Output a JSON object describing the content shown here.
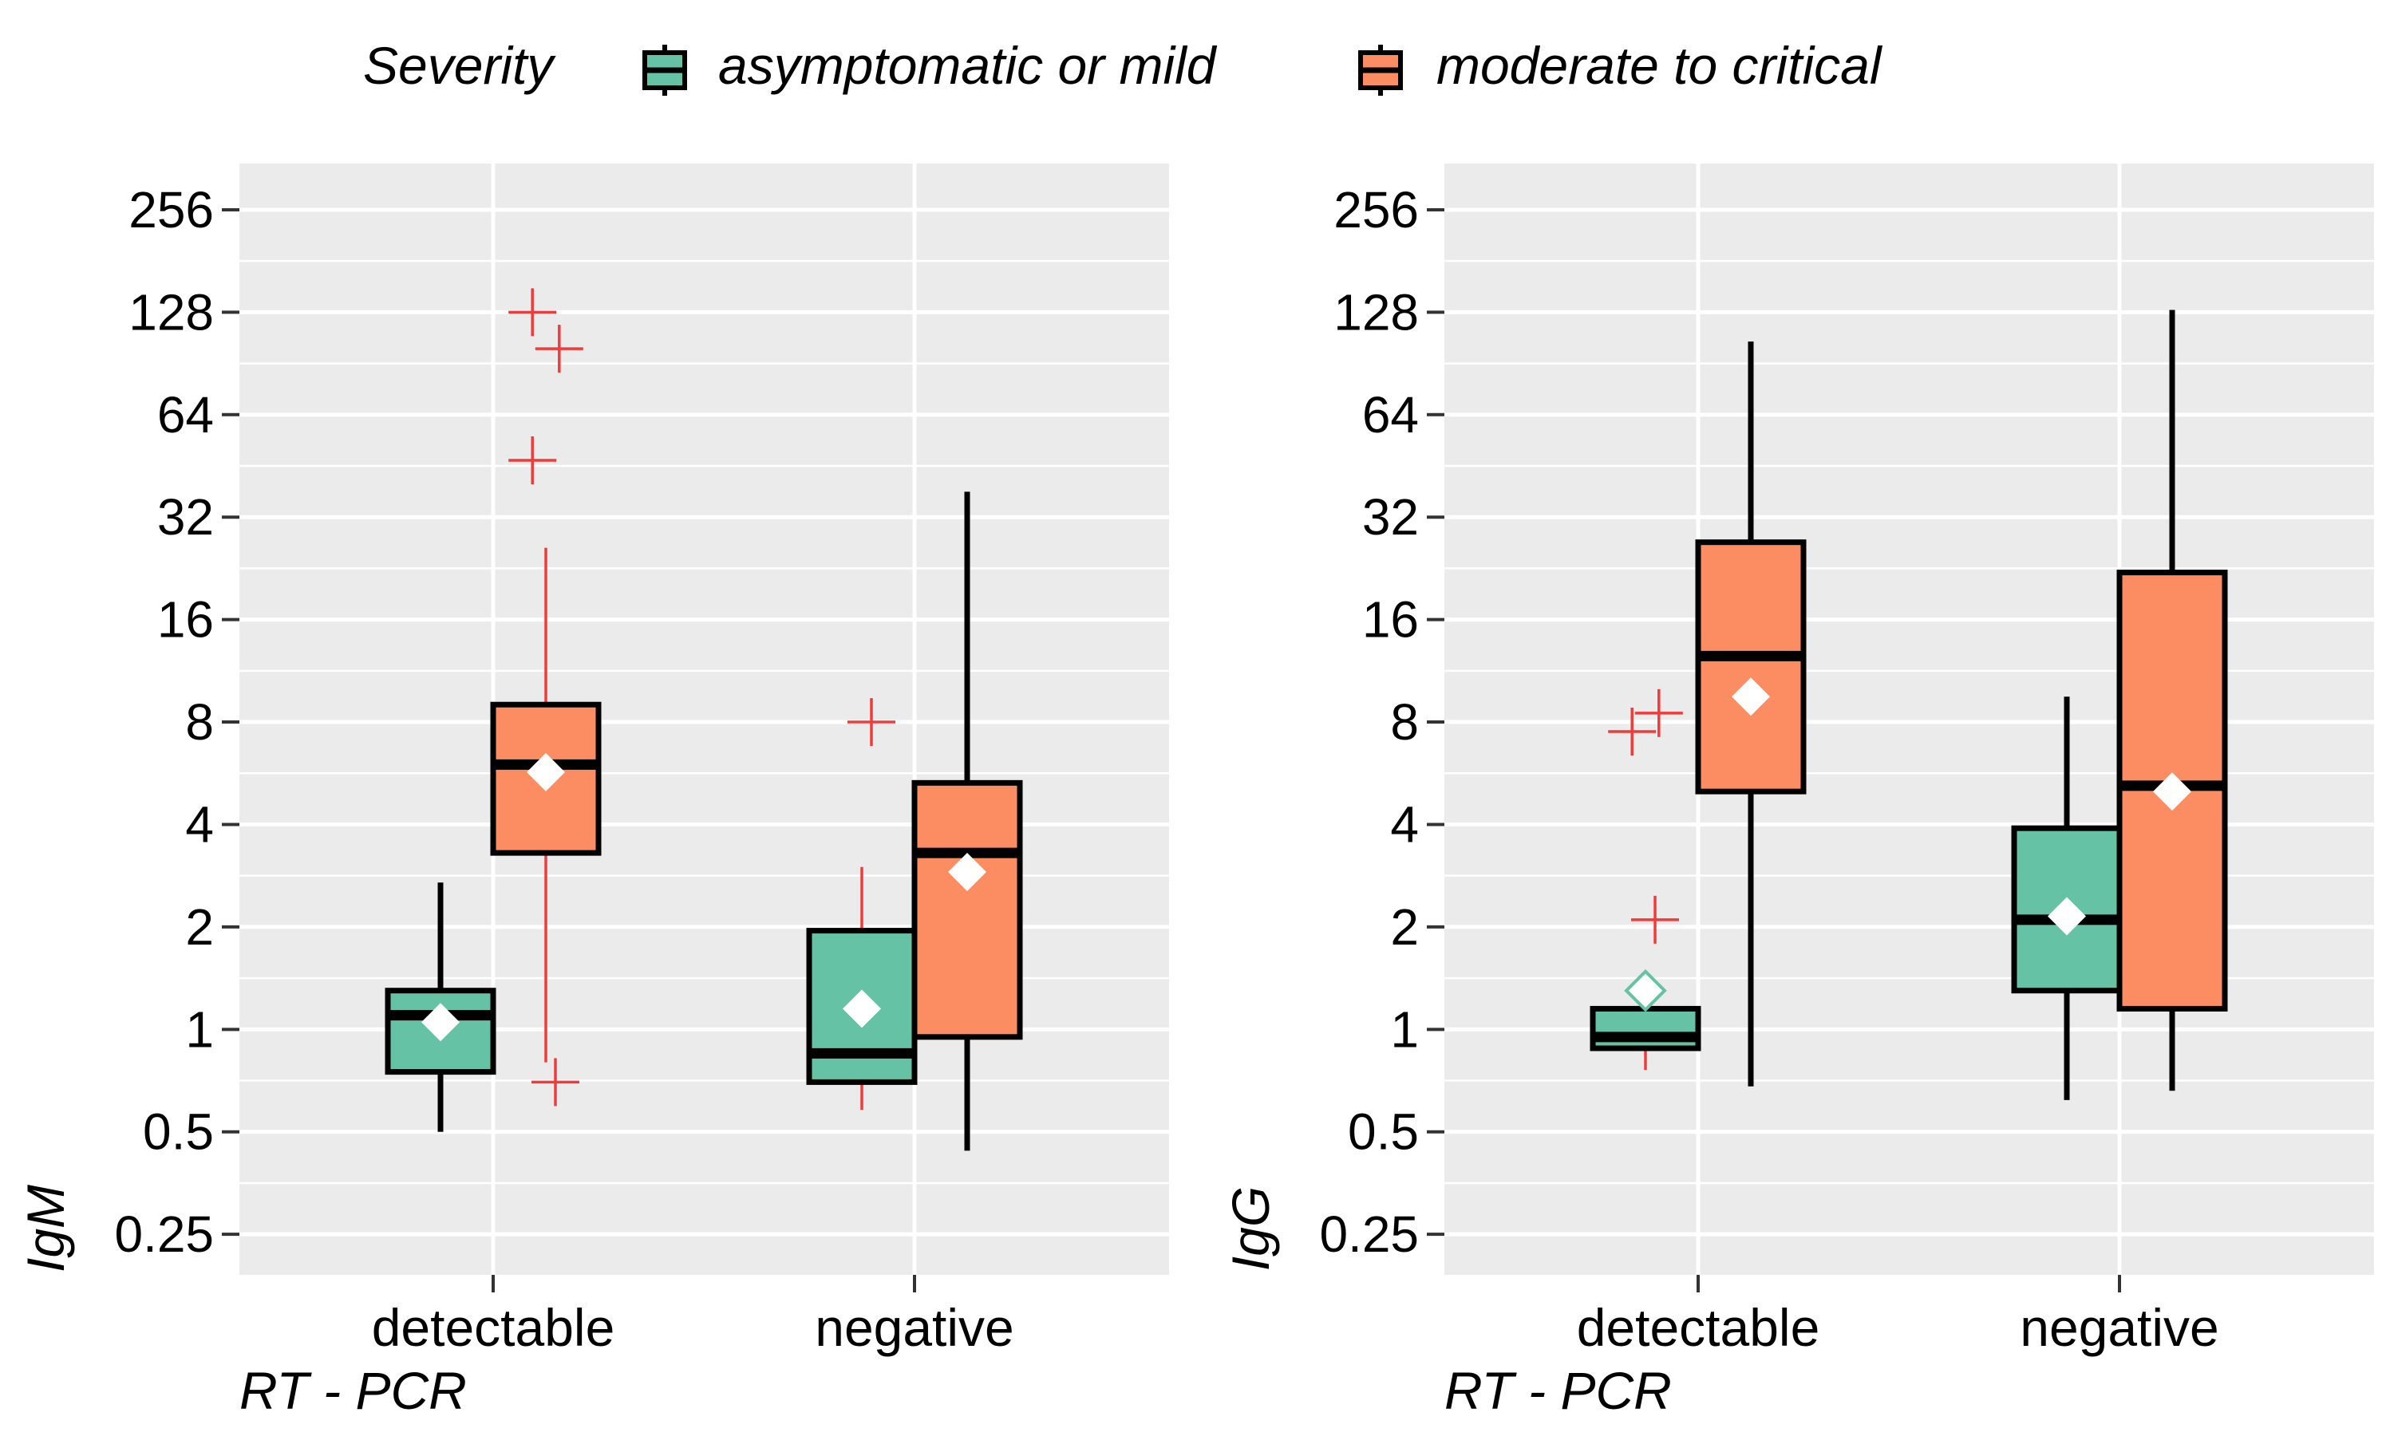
{
  "legend": {
    "title": "Severity",
    "items": [
      {
        "label": "asymptomatic or mild",
        "color": "#66C2A5"
      },
      {
        "label": "moderate to critical",
        "color": "#FC8D62"
      }
    ]
  },
  "colors": {
    "panel_background": "#EBEBEB",
    "grid": "#FFFFFF",
    "outlier": "#F03B3B",
    "mean_marker": "#FFFFFF"
  },
  "chart_data": [
    {
      "type": "box",
      "panel": "left",
      "xlabel": "RT - PCR",
      "ylabel": "IgM",
      "y_scale": "log2",
      "ylim": [
        0.19,
        350
      ],
      "y_ticks": [
        "0.25",
        "0.5",
        "1",
        "2",
        "4",
        "8",
        "16",
        "32",
        "64",
        "128",
        "256"
      ],
      "grid": true,
      "categories": [
        "detectable",
        "negative"
      ],
      "series": [
        {
          "name": "asymptomatic or mild",
          "boxes": [
            {
              "category": "detectable",
              "whisker_low": 0.5,
              "q1": 0.75,
              "median": 1.1,
              "q3": 1.3,
              "whisker_high": 2.7,
              "mean": 1.05,
              "outliers": []
            },
            {
              "category": "negative",
              "whisker_low": 0.58,
              "q1": 0.7,
              "median": 0.85,
              "q3": 1.95,
              "whisker_high": 3.0,
              "mean": 1.15,
              "outliers": [
                8.0
              ]
            }
          ]
        },
        {
          "name": "moderate to critical",
          "boxes": [
            {
              "category": "detectable",
              "whisker_low": 0.8,
              "q1": 3.3,
              "median": 6.0,
              "q3": 9.0,
              "whisker_high": 26.0,
              "mean": 5.7,
              "outliers": [
                0.7,
                47,
                100,
                128
              ]
            },
            {
              "category": "negative",
              "whisker_low": 0.44,
              "q1": 0.95,
              "median": 3.3,
              "q3": 5.3,
              "whisker_high": 38.0,
              "mean": 2.9,
              "outliers": []
            }
          ]
        }
      ]
    },
    {
      "type": "box",
      "panel": "right",
      "xlabel": "RT - PCR",
      "ylabel": "IgG",
      "y_scale": "log2",
      "ylim": [
        0.19,
        350
      ],
      "y_ticks": [
        "0.25",
        "0.5",
        "1",
        "2",
        "4",
        "8",
        "16",
        "32",
        "64",
        "128",
        "256"
      ],
      "grid": true,
      "categories": [
        "detectable",
        "negative"
      ],
      "series": [
        {
          "name": "asymptomatic or mild",
          "boxes": [
            {
              "category": "detectable",
              "whisker_low": 0.76,
              "q1": 0.88,
              "median": 0.95,
              "q3": 1.15,
              "whisker_high": 1.15,
              "mean": 1.3,
              "outliers": [
                2.1,
                7.5,
                8.5
              ]
            },
            {
              "category": "negative",
              "whisker_low": 0.62,
              "q1": 1.3,
              "median": 2.1,
              "q3": 3.9,
              "whisker_high": 9.5,
              "mean": 2.15,
              "outliers": []
            }
          ]
        },
        {
          "name": "moderate to critical",
          "boxes": [
            {
              "category": "detectable",
              "whisker_low": 0.68,
              "q1": 5.0,
              "median": 12.5,
              "q3": 27.0,
              "whisker_high": 105.0,
              "mean": 9.5,
              "outliers": []
            },
            {
              "category": "negative",
              "whisker_low": 0.66,
              "q1": 1.15,
              "median": 5.2,
              "q3": 22.0,
              "whisker_high": 130.0,
              "mean": 5.0,
              "outliers": []
            }
          ]
        }
      ]
    }
  ]
}
